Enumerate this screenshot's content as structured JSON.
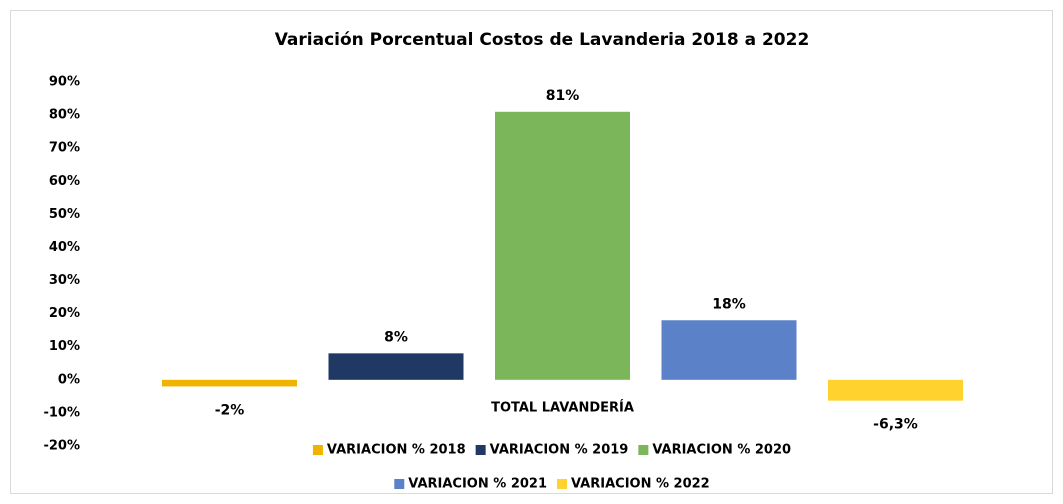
{
  "chart_data": {
    "type": "bar",
    "title": "Variación Porcentual Costos de Lavanderia 2018 a 2022",
    "categories": [
      "TOTAL LAVANDERÍA"
    ],
    "series": [
      {
        "name": "VARIACION % 2018",
        "color": "#f0b400",
        "values": [
          -2
        ],
        "value_labels": [
          "-2%"
        ]
      },
      {
        "name": "VARIACION % 2019",
        "color": "#203864",
        "values": [
          8
        ],
        "value_labels": [
          "8%"
        ]
      },
      {
        "name": "VARIACION % 2020",
        "color": "#7cb65a",
        "values": [
          81
        ],
        "value_labels": [
          "81%"
        ]
      },
      {
        "name": "VARIACION % 2021",
        "color": "#5b82c9",
        "values": [
          18
        ],
        "value_labels": [
          "18%"
        ]
      },
      {
        "name": "VARIACION % 2022",
        "color": "#ffd22e",
        "values": [
          -6.3
        ],
        "value_labels": [
          "-6,3%"
        ]
      }
    ],
    "ylim": [
      -20,
      90
    ],
    "yticks": [
      {
        "value": -20,
        "label": "-20%"
      },
      {
        "value": -10,
        "label": "-10%"
      },
      {
        "value": 0,
        "label": "0%"
      },
      {
        "value": 10,
        "label": "10%"
      },
      {
        "value": 20,
        "label": "20%"
      },
      {
        "value": 30,
        "label": "30%"
      },
      {
        "value": 40,
        "label": "40%"
      },
      {
        "value": 50,
        "label": "50%"
      },
      {
        "value": 60,
        "label": "60%"
      },
      {
        "value": 70,
        "label": "70%"
      },
      {
        "value": 80,
        "label": "80%"
      },
      {
        "value": 90,
        "label": "90%"
      }
    ],
    "grid": false
  }
}
